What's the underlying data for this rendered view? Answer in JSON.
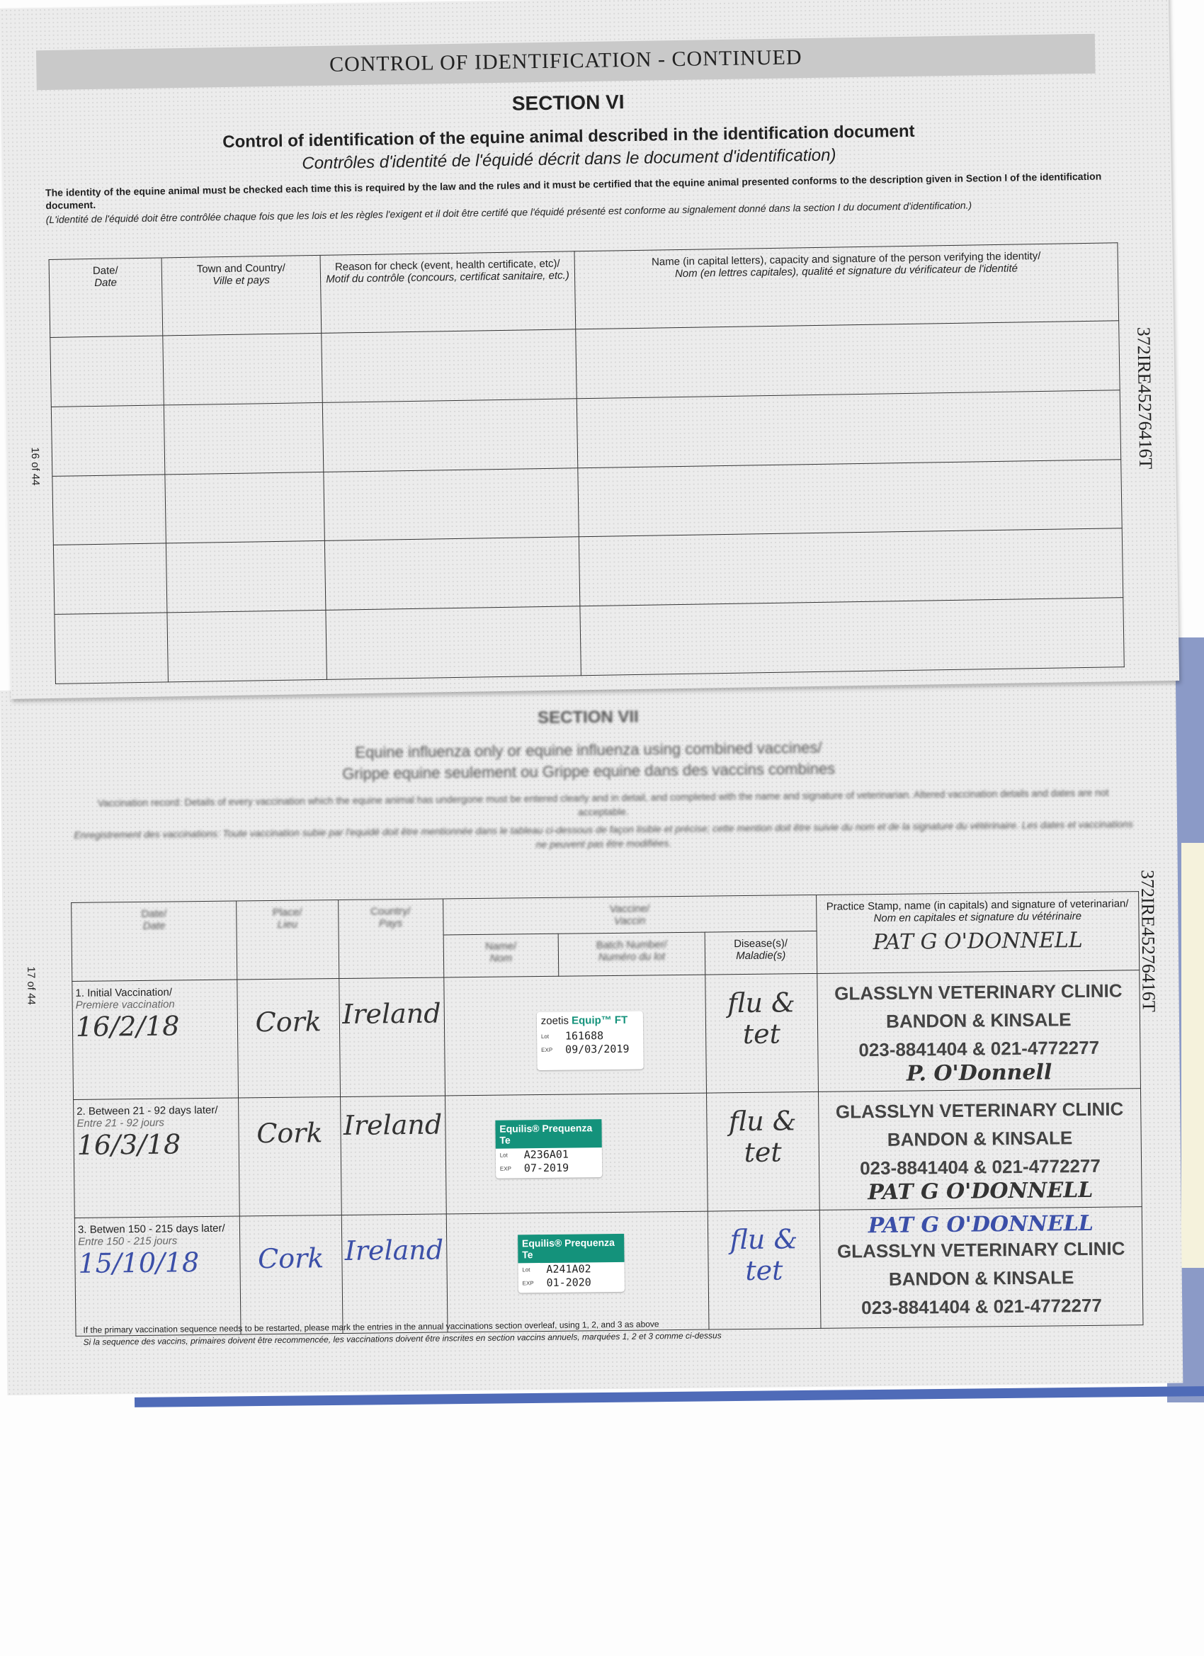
{
  "top_page": {
    "banner": "CONTROL OF IDENTIFICATION - CONTINUED",
    "section": "SECTION VI",
    "title_en": "Control of identification of the equine animal described in the identification document",
    "title_fr": "Contrôles d'identité de l'équidé décrit dans le document d'identification)",
    "intro_en": "The identity of the equine animal must be checked each time this is required by the law and the rules and it must be certified that the equine animal presented conforms to the description given in Section I of the identification document.",
    "intro_fr": "(L'identité de l'équidé doit être contrôlée chaque fois que les lois et les règles l'exigent et il doit être certifé que l'équidé présenté est conforme au signalement donné dans la section I du document d'identification.)",
    "columns": [
      {
        "en": "Date/",
        "fr": "Date"
      },
      {
        "en": "Town and Country/",
        "fr": "Ville et pays"
      },
      {
        "en": "Reason for check (event, health certificate, etc)/",
        "fr": "Motif du contrôle (concours, certificat sanitaire, etc.)"
      },
      {
        "en": "Name (in capital letters), capacity and signature of the person verifying the identity/",
        "fr": "Nom (en lettres capitales), qualité et signature du vérificateur de l'identité"
      }
    ],
    "page_number": "16 of 44",
    "passport_number": "372IRE45276416T"
  },
  "bottom_page": {
    "section": "SECTION VII",
    "title_en": "Equine influenza only or equine influenza using combined vaccines/",
    "title_fr": "Grippe equine seulement ou Grippe equine dans des vaccins combines",
    "intro_en": "Vaccination record: Details of every vaccination which the equine animal has undergone must be entered clearly and in detail, and completed with the name and signature of veterinarian. Altered vaccination details and dates are not acceptable.",
    "intro_fr": "Enregistrement des vaccinations: Toute vaccination subie par l'equidé doit être mentionnée dans le tableau ci-dessous de façon lisible et précise; cette mention doit être suivie du nom et de la signature du vétérinaire. Les dates et vaccinations ne peuvent pas être modifiées.",
    "headers": {
      "date": {
        "en": "Date/",
        "fr": "Date"
      },
      "place": {
        "en": "Place/",
        "fr": "Lieu"
      },
      "country": {
        "en": "Country/",
        "fr": "Pays"
      },
      "vaccine": {
        "en": "Vaccine/",
        "fr": "Vaccin"
      },
      "name": {
        "en": "Name/",
        "fr": "Nom"
      },
      "batch": {
        "en": "Batch Number/",
        "fr": "Numéro du lot"
      },
      "disease": {
        "en": "Disease(s)/",
        "fr": "Maladie(s)"
      },
      "stamp": {
        "en": "Practice Stamp, name (in capitals) and signature of veterinarian/",
        "fr": "Nom en capitales et signature du vétérinaire"
      }
    },
    "header_signature": "PAT G O'DONNELL",
    "rows": [
      {
        "label_en": "1. Initial Vaccination/",
        "label_fr": "Premiere vaccination",
        "date": "16/2/18",
        "place": "Cork",
        "country": "Ireland",
        "sticker": {
          "brand": "zoetis",
          "product": "Equip™ FT",
          "lot": "161688",
          "exp": "09/03/2019"
        },
        "disease": "flu & tet",
        "stamp": [
          "GLASSLYN VETERINARY CLINIC",
          "BANDON & KINSALE",
          "023-8841404 & 021-4772277"
        ],
        "signature": "P. O'Donnell",
        "ink": "black"
      },
      {
        "label_en": "2. Between 21 - 92 days later/",
        "label_fr": "Entre 21 - 92 jours",
        "date": "16/3/18",
        "place": "Cork",
        "country": "Ireland",
        "sticker": {
          "brand": "",
          "product": "Equilis® Prequenza Te",
          "lot": "A236A01",
          "exp": "07-2019"
        },
        "disease": "flu & tet",
        "stamp": [
          "GLASSLYN VETERINARY CLINIC",
          "BANDON & KINSALE",
          "023-8841404 & 021-4772277"
        ],
        "signature": "PAT G O'DONNELL",
        "ink": "black"
      },
      {
        "label_en": "3. Betwen 150 - 215 days later/",
        "label_fr": "Entre 150 - 215 jours",
        "date": "15/10/18",
        "place": "Cork",
        "country": "Ireland",
        "sticker": {
          "brand": "",
          "product": "Equilis® Prequenza Te",
          "lot": "A241A02",
          "exp": "01-2020"
        },
        "disease": "flu & tet",
        "stamp": [
          "GLASSLYN VETERINARY CLINIC",
          "BANDON & KINSALE",
          "023-8841404 & 021-4772277"
        ],
        "signature": "PAT G O'DONNELL",
        "ink": "blue"
      }
    ],
    "sticker_lot_label": "Lot",
    "sticker_exp_label": "EXP",
    "footnote_en": "If the primary vaccination sequence needs to be restarted, please mark the entries in the annual vaccinations section overleaf, using 1, 2, and 3 as above",
    "footnote_fr": "Si la sequence des vaccins, primaires doivent être recommencée, les vaccinations doivent être inscrites en section vaccins annuels, marquées 1, 2 et 3 comme ci-dessus",
    "page_number": "17 of 44",
    "passport_number": "372IRE45276416T"
  },
  "colors": {
    "sticker_green": "#14927b",
    "blue_ink": "#3b4fa8",
    "cover_blue": "#4f6bb8"
  }
}
